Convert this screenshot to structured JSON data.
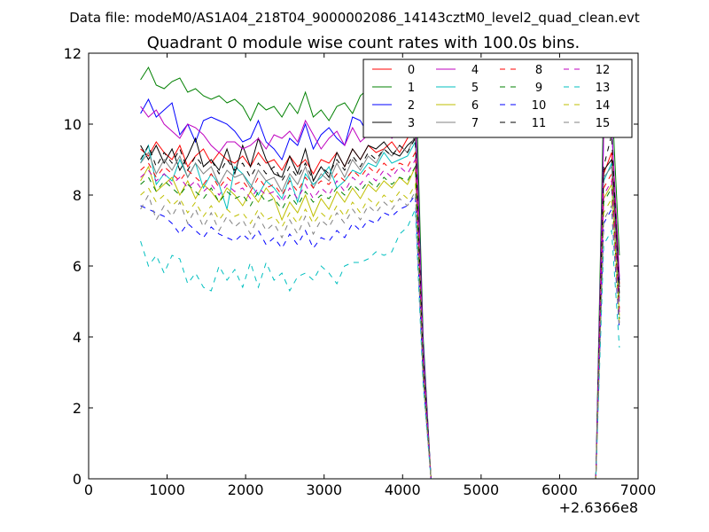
{
  "chart_data": {
    "type": "line",
    "suptitle": "Data file: modeM0/AS1A04_218T04_9000002086_14143cztM0_level2_quad_clean.evt",
    "title": "Quadrant 0 module wise count rates with 100.0s bins.",
    "xlabel": "",
    "ylabel": "",
    "x_offset_label": "+2.6366e8",
    "xlim": [
      0,
      7000
    ],
    "ylim": [
      0,
      12
    ],
    "x_ticks": [
      0,
      1000,
      2000,
      3000,
      4000,
      5000,
      6000,
      7000
    ],
    "y_ticks": [
      0,
      2,
      4,
      6,
      8,
      10,
      12
    ],
    "x_tick_labels": [
      "0",
      "1000",
      "2000",
      "3000",
      "4000",
      "5000",
      "6000",
      "7000"
    ],
    "y_tick_labels": [
      "0",
      "2",
      "4",
      "6",
      "8",
      "10",
      "12"
    ],
    "legend_position": "top-right",
    "x": [
      662,
      762,
      862,
      962,
      1062,
      1162,
      1262,
      1362,
      1462,
      1562,
      1662,
      1762,
      1862,
      1962,
      2062,
      2162,
      2262,
      2362,
      2462,
      2562,
      2662,
      2762,
      2862,
      2962,
      3062,
      3162,
      3262,
      3362,
      3462,
      3562,
      3662,
      3762,
      3862,
      3962,
      4062,
      4162,
      4262,
      4362,
      4462,
      4562,
      4662,
      4762,
      4862,
      4962,
      5062,
      5162,
      5262,
      5362,
      5462,
      5562,
      5662,
      5762,
      5862,
      5962,
      6062,
      6162,
      6262,
      6362,
      6462,
      6562,
      6662,
      6762
    ],
    "series": [
      {
        "name": "0",
        "color": "#ff0000",
        "dash": "solid",
        "values": [
          9.3,
          9.1,
          9.5,
          9.2,
          9.0,
          9.4,
          8.8,
          9.1,
          9.3,
          8.9,
          9.2,
          9.0,
          8.9,
          9.1,
          8.8,
          9.2,
          8.9,
          9.0,
          8.7,
          9.1,
          8.8,
          9.0,
          8.6,
          9.0,
          8.9,
          9.2,
          8.8,
          9.3,
          9.0,
          9.4,
          9.2,
          9.3,
          9.5,
          9.2,
          9.6,
          10.0,
          3.5,
          0.0,
          0.0,
          0.0,
          0.0,
          0.0,
          0.0,
          0.0,
          0.0,
          0.0,
          0.0,
          0.0,
          0.0,
          0.0,
          0.0,
          0.0,
          0.0,
          0.0,
          0.0,
          0.0,
          0.0,
          0.0,
          0.0,
          8.6,
          9.2,
          5.5
        ]
      },
      {
        "name": "1",
        "color": "#008000",
        "dash": "solid",
        "values": [
          11.25,
          11.6,
          11.1,
          11.0,
          11.2,
          11.3,
          10.9,
          11.0,
          10.8,
          10.7,
          10.8,
          10.6,
          10.7,
          10.5,
          10.1,
          10.6,
          10.4,
          10.5,
          10.2,
          10.6,
          10.3,
          10.9,
          10.2,
          10.4,
          10.1,
          10.5,
          10.6,
          10.3,
          10.8,
          11.0,
          10.9,
          11.6,
          11.0,
          11.4,
          11.2,
          11.8,
          4.0,
          0.0,
          0.0,
          0.0,
          0.0,
          0.0,
          0.0,
          0.0,
          0.0,
          0.0,
          0.0,
          0.0,
          0.0,
          0.0,
          0.0,
          0.0,
          0.0,
          0.0,
          0.0,
          0.0,
          0.0,
          0.0,
          0.0,
          10.8,
          10.9,
          6.3
        ]
      },
      {
        "name": "2",
        "color": "#0000ff",
        "dash": "solid",
        "values": [
          10.3,
          10.7,
          10.2,
          10.4,
          10.6,
          9.7,
          10.0,
          9.5,
          10.1,
          10.2,
          10.1,
          10.0,
          9.8,
          9.5,
          9.6,
          10.1,
          9.5,
          9.3,
          9.0,
          9.6,
          9.4,
          10.0,
          9.3,
          9.7,
          9.9,
          9.6,
          9.4,
          10.2,
          10.1,
          9.7,
          10.0,
          9.8,
          10.2,
          10.1,
          9.9,
          10.6,
          3.8,
          0.0,
          0.0,
          0.0,
          0.0,
          0.0,
          0.0,
          0.0,
          0.0,
          0.0,
          0.0,
          0.0,
          0.0,
          0.0,
          0.0,
          0.0,
          0.0,
          0.0,
          0.0,
          0.0,
          0.0,
          0.0,
          0.0,
          9.8,
          10.0,
          5.6
        ]
      },
      {
        "name": "3",
        "color": "#000000",
        "dash": "solid",
        "values": [
          9.4,
          9.0,
          9.4,
          8.9,
          9.3,
          8.7,
          9.1,
          9.6,
          8.8,
          9.0,
          8.7,
          9.3,
          8.6,
          9.4,
          8.8,
          9.6,
          9.0,
          8.6,
          8.5,
          9.1,
          8.6,
          9.3,
          8.4,
          8.8,
          8.5,
          9.2,
          8.8,
          9.3,
          9.0,
          9.4,
          9.3,
          9.5,
          9.2,
          9.1,
          9.4,
          9.6,
          3.3,
          0.0,
          0.0,
          0.0,
          0.0,
          0.0,
          0.0,
          0.0,
          0.0,
          0.0,
          0.0,
          0.0,
          0.0,
          0.0,
          0.0,
          0.0,
          0.0,
          0.0,
          0.0,
          0.0,
          0.0,
          0.0,
          0.0,
          8.7,
          9.0,
          5.4
        ]
      },
      {
        "name": "4",
        "color": "#bf00bf",
        "dash": "solid",
        "values": [
          10.5,
          10.2,
          10.4,
          10.0,
          9.8,
          9.6,
          10.0,
          9.9,
          9.7,
          9.4,
          9.2,
          9.5,
          9.5,
          9.3,
          9.4,
          9.6,
          9.3,
          9.7,
          9.6,
          9.8,
          9.5,
          10.1,
          9.7,
          9.3,
          9.6,
          9.8,
          9.4,
          9.9,
          9.5,
          9.7,
          9.9,
          10.0,
          9.6,
          9.8,
          10.1,
          10.5,
          3.7,
          0.0,
          0.0,
          0.0,
          0.0,
          0.0,
          0.0,
          0.0,
          0.0,
          0.0,
          0.0,
          0.0,
          0.0,
          0.0,
          0.0,
          0.0,
          0.0,
          0.0,
          0.0,
          0.0,
          0.0,
          0.0,
          0.0,
          9.7,
          9.9,
          5.7
        ]
      },
      {
        "name": "5",
        "color": "#00bfbf",
        "dash": "solid",
        "values": [
          8.9,
          9.4,
          8.3,
          8.6,
          8.4,
          9.0,
          8.5,
          8.9,
          8.2,
          8.6,
          8.3,
          7.6,
          8.8,
          8.6,
          8.3,
          8.0,
          8.4,
          8.2,
          7.9,
          8.5,
          7.8,
          8.6,
          8.3,
          8.5,
          8.8,
          8.2,
          8.4,
          8.7,
          8.6,
          8.9,
          8.8,
          9.2,
          8.9,
          9.0,
          9.1,
          9.5,
          3.4,
          0.0,
          0.0,
          0.0,
          0.0,
          0.0,
          0.0,
          0.0,
          0.0,
          0.0,
          0.0,
          0.0,
          0.0,
          0.0,
          0.0,
          0.0,
          0.0,
          0.0,
          0.0,
          0.0,
          0.0,
          0.0,
          0.0,
          8.4,
          8.9,
          5.0
        ]
      },
      {
        "name": "6",
        "color": "#bfbf00",
        "dash": "solid",
        "values": [
          8.4,
          8.8,
          8.1,
          8.3,
          8.5,
          8.0,
          8.4,
          7.9,
          8.3,
          8.1,
          7.8,
          8.2,
          8.0,
          7.7,
          8.1,
          7.8,
          8.2,
          7.9,
          7.3,
          7.8,
          7.5,
          8.0,
          7.4,
          7.9,
          7.6,
          8.1,
          7.8,
          8.2,
          7.9,
          8.3,
          8.1,
          8.4,
          8.2,
          8.5,
          8.3,
          8.8,
          3.1,
          0.0,
          0.0,
          0.0,
          0.0,
          0.0,
          0.0,
          0.0,
          0.0,
          0.0,
          0.0,
          0.0,
          0.0,
          0.0,
          0.0,
          0.0,
          0.0,
          0.0,
          0.0,
          0.0,
          0.0,
          0.0,
          0.0,
          7.9,
          8.3,
          4.6
        ]
      },
      {
        "name": "7",
        "color": "#808080",
        "dash": "solid",
        "values": [
          8.9,
          9.2,
          8.6,
          9.0,
          8.7,
          9.1,
          8.5,
          8.9,
          8.6,
          8.8,
          8.3,
          8.7,
          8.5,
          8.6,
          8.2,
          8.7,
          8.4,
          8.5,
          8.1,
          8.6,
          8.3,
          8.8,
          8.2,
          8.6,
          8.4,
          8.9,
          8.5,
          9.0,
          8.7,
          9.1,
          8.9,
          9.3,
          9.1,
          9.4,
          9.2,
          9.7,
          3.4,
          0.0,
          0.0,
          0.0,
          0.0,
          0.0,
          0.0,
          0.0,
          0.0,
          0.0,
          0.0,
          0.0,
          0.0,
          0.0,
          0.0,
          0.0,
          0.0,
          0.0,
          0.0,
          0.0,
          0.0,
          0.0,
          0.0,
          8.5,
          8.8,
          5.1
        ]
      },
      {
        "name": "8",
        "color": "#ff0000",
        "dash": "dashed",
        "values": [
          8.7,
          8.9,
          8.5,
          8.8,
          8.6,
          8.4,
          8.7,
          8.5,
          8.3,
          8.6,
          8.2,
          8.5,
          8.3,
          8.4,
          8.1,
          8.5,
          8.2,
          8.3,
          8.0,
          8.4,
          8.1,
          8.5,
          8.2,
          8.4,
          8.3,
          8.6,
          8.4,
          8.7,
          8.5,
          8.8,
          8.6,
          8.9,
          8.7,
          8.9,
          8.8,
          9.2,
          3.2,
          0.0,
          0.0,
          0.0,
          0.0,
          0.0,
          0.0,
          0.0,
          0.0,
          0.0,
          0.0,
          0.0,
          0.0,
          0.0,
          0.0,
          0.0,
          0.0,
          0.0,
          0.0,
          0.0,
          0.0,
          0.0,
          0.0,
          8.2,
          8.6,
          4.8
        ]
      },
      {
        "name": "9",
        "color": "#008000",
        "dash": "dashed",
        "values": [
          8.3,
          8.5,
          8.1,
          8.4,
          8.2,
          8.0,
          8.3,
          8.1,
          7.9,
          8.2,
          7.8,
          8.1,
          7.9,
          8.0,
          7.7,
          8.1,
          7.8,
          7.9,
          7.6,
          8.0,
          7.7,
          8.1,
          7.8,
          8.0,
          7.9,
          8.2,
          8.0,
          8.3,
          8.1,
          8.4,
          8.2,
          8.5,
          8.3,
          8.5,
          8.4,
          8.8,
          3.1,
          0.0,
          0.0,
          0.0,
          0.0,
          0.0,
          0.0,
          0.0,
          0.0,
          0.0,
          0.0,
          0.0,
          0.0,
          0.0,
          0.0,
          0.0,
          0.0,
          0.0,
          0.0,
          0.0,
          0.0,
          0.0,
          0.0,
          7.8,
          8.2,
          4.5
        ]
      },
      {
        "name": "10",
        "color": "#0000ff",
        "dash": "dashed",
        "values": [
          7.7,
          7.6,
          7.5,
          7.4,
          7.2,
          6.9,
          7.2,
          7.0,
          6.8,
          7.1,
          6.9,
          6.8,
          6.7,
          6.9,
          6.7,
          7.0,
          6.6,
          6.8,
          6.5,
          6.9,
          6.6,
          7.0,
          6.5,
          6.8,
          6.7,
          7.0,
          6.8,
          7.2,
          7.0,
          7.3,
          7.2,
          7.5,
          7.4,
          7.6,
          7.7,
          8.0,
          2.8,
          0.0,
          0.0,
          0.0,
          0.0,
          0.0,
          0.0,
          0.0,
          0.0,
          0.0,
          0.0,
          0.0,
          0.0,
          0.0,
          0.0,
          0.0,
          0.0,
          0.0,
          0.0,
          0.0,
          0.0,
          0.0,
          0.0,
          7.2,
          7.6,
          4.2
        ]
      },
      {
        "name": "11",
        "color": "#000000",
        "dash": "dashed",
        "values": [
          9.0,
          9.4,
          8.8,
          9.2,
          8.9,
          9.3,
          8.7,
          9.1,
          8.8,
          9.0,
          8.6,
          9.0,
          8.7,
          8.9,
          8.5,
          8.9,
          8.6,
          8.8,
          8.4,
          8.8,
          8.5,
          8.9,
          8.4,
          8.8,
          8.6,
          9.0,
          8.7,
          9.1,
          8.8,
          9.2,
          9.0,
          9.3,
          9.1,
          9.4,
          9.2,
          9.6,
          3.4,
          0.0,
          0.0,
          0.0,
          0.0,
          0.0,
          0.0,
          0.0,
          0.0,
          0.0,
          0.0,
          0.0,
          0.0,
          0.0,
          0.0,
          0.0,
          0.0,
          0.0,
          0.0,
          0.0,
          0.0,
          0.0,
          0.0,
          8.8,
          9.7,
          5.2
        ]
      },
      {
        "name": "12",
        "color": "#bf00bf",
        "dash": "dashed",
        "values": [
          8.5,
          8.7,
          8.4,
          8.6,
          8.3,
          8.5,
          8.2,
          8.4,
          8.1,
          8.3,
          8.0,
          8.3,
          8.1,
          8.2,
          7.9,
          8.2,
          8.0,
          8.1,
          7.8,
          8.2,
          7.9,
          8.3,
          7.9,
          8.2,
          8.0,
          8.4,
          8.1,
          8.5,
          8.3,
          8.6,
          8.4,
          8.7,
          8.5,
          8.8,
          8.6,
          9.0,
          3.2,
          0.0,
          0.0,
          0.0,
          0.0,
          0.0,
          0.0,
          0.0,
          0.0,
          0.0,
          0.0,
          0.0,
          0.0,
          0.0,
          0.0,
          0.0,
          0.0,
          0.0,
          0.0,
          0.0,
          0.0,
          0.0,
          0.0,
          8.0,
          8.4,
          4.7
        ]
      },
      {
        "name": "13",
        "color": "#00bfbf",
        "dash": "dashed",
        "values": [
          6.7,
          6.0,
          6.3,
          5.8,
          6.3,
          6.2,
          5.5,
          5.8,
          5.4,
          5.3,
          6.0,
          5.6,
          5.9,
          5.4,
          6.1,
          5.4,
          6.1,
          5.6,
          5.8,
          5.3,
          5.7,
          5.8,
          5.6,
          6.0,
          5.8,
          5.5,
          6.0,
          6.1,
          6.1,
          6.2,
          6.4,
          6.3,
          6.4,
          6.9,
          7.1,
          7.6,
          2.6,
          0.0,
          0.0,
          0.0,
          0.0,
          0.0,
          0.0,
          0.0,
          0.0,
          0.0,
          0.0,
          0.0,
          0.0,
          0.0,
          0.0,
          0.0,
          0.0,
          0.0,
          0.0,
          0.0,
          0.0,
          0.0,
          0.0,
          6.6,
          7.0,
          3.7
        ]
      },
      {
        "name": "14",
        "color": "#bfbf00",
        "dash": "dashed",
        "values": [
          8.0,
          8.2,
          7.8,
          8.0,
          7.7,
          7.9,
          7.5,
          7.8,
          7.4,
          7.7,
          7.3,
          7.6,
          7.4,
          7.5,
          7.2,
          7.6,
          7.3,
          7.4,
          7.1,
          7.5,
          7.2,
          7.6,
          7.2,
          7.5,
          7.3,
          7.7,
          7.4,
          7.8,
          7.5,
          7.9,
          7.7,
          8.0,
          7.8,
          8.1,
          7.9,
          8.3,
          2.9,
          0.0,
          0.0,
          0.0,
          0.0,
          0.0,
          0.0,
          0.0,
          0.0,
          0.0,
          0.0,
          0.0,
          0.0,
          0.0,
          0.0,
          0.0,
          0.0,
          0.0,
          0.0,
          0.0,
          0.0,
          0.0,
          0.0,
          7.5,
          7.9,
          4.3
        ]
      },
      {
        "name": "15",
        "color": "#808080",
        "dash": "dashed",
        "values": [
          7.6,
          8.0,
          7.3,
          7.7,
          7.4,
          7.8,
          7.2,
          7.6,
          7.1,
          7.5,
          7.0,
          7.4,
          7.1,
          7.3,
          6.9,
          7.4,
          7.0,
          7.2,
          6.8,
          7.3,
          6.9,
          7.4,
          6.9,
          7.3,
          7.1,
          7.5,
          7.2,
          7.6,
          7.3,
          7.7,
          7.5,
          7.8,
          7.6,
          7.9,
          7.7,
          8.1,
          2.8,
          0.0,
          0.0,
          0.0,
          0.0,
          0.0,
          0.0,
          0.0,
          0.0,
          0.0,
          0.0,
          0.0,
          0.0,
          0.0,
          0.0,
          0.0,
          0.0,
          0.0,
          0.0,
          0.0,
          0.0,
          0.0,
          0.0,
          7.3,
          7.7,
          4.4
        ]
      }
    ]
  }
}
